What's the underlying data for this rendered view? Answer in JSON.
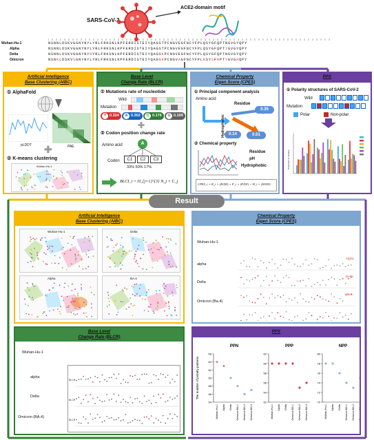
{
  "header": {
    "virus_label": "SARS-CoV-2",
    "motif_label": "ACE2-domain motif",
    "alignment_rows": [
      {
        "name": "Wuhan-Hu-1",
        "seq": "NSNNLDSKVGGNYNYLYRLFRKSNLKPFERDISTEIYQAGSTPCNGVEGFNCYFPLQSYGFQPTNGVGYQPY"
      },
      {
        "name": "Alpha",
        "seq": "NSNNLDSKVGGNYNYLYRLFRKSNLKPFERDISTEIYQAGSTPCNGVEGFNCYFPLQSYGFQPTYGVGYQPY"
      },
      {
        "name": "Delta",
        "seq": "NSNNLDSKVGGNYNYRYRLFRKSNLKPFERDISTEIYQAGSKPCNGVEGFNCYFPLQSYGFQPTNGVGYQPY"
      },
      {
        "name": "Omicron",
        "seq": "NSNKLDSKVSGNYNYLYRLFRKSNLKPFERDISTEIYQAGNKPCNGVAGFNCYFPLRSYSFRPTYGVGHQPY"
      }
    ]
  },
  "panels": {
    "aibc": {
      "title_line1": "Artificial Intelligence",
      "title_line2": "Base Clustering (AIBC)",
      "step1": "① AlphaFold",
      "plddt_label": "pLDDT",
      "pae_label": "PAE",
      "step2": "② K-means clustering",
      "cluster_title": "Wuhan-Hu-1"
    },
    "blcr": {
      "title_line1": "Base Level",
      "title_line2": "Change Rate (BLCR)",
      "step1": "① Mutations rate of nucleotide",
      "wild_label": "Wild",
      "mutation_label": "Mutation",
      "badges": [
        {
          "letter": "T",
          "value": "0.324",
          "color": "#d32f2f"
        },
        {
          "letter": "A",
          "value": "0.302",
          "color": "#1565c0"
        },
        {
          "letter": "C",
          "value": "0.176",
          "color": "#2e7d32"
        },
        {
          "letter": "G",
          "value": "0.199",
          "color": "#616161"
        }
      ],
      "step2": "② Codon position change rate",
      "amino_label": "Amino acid",
      "amino_letter": "A",
      "codon_label": "Codon",
      "codons": [
        "C1",
        "C2",
        "C3"
      ],
      "codon_rates": "33% 50% 17%",
      "formula": "BLCI_i = Π_{j=1}^{3} N_j × C_j"
    },
    "cpes": {
      "title_line1": "Chemical Property",
      "title_line2": "Eigen Score (CPES)",
      "step1": "① Principal component analysis",
      "amino_label": "Amino acid",
      "residue_label": "Residue",
      "hydrophobic_label": "Hydrophobic",
      "ph_label": "pH",
      "val_residue": "0.35",
      "val_hydro": "0.14",
      "val_ph": "0.51",
      "step2": "② Chemical property",
      "legend_residue": "Residue",
      "legend_ph": "pH",
      "legend_hydro": "Hydrophobic",
      "formula": "CPES_i = R_i × (R/ΣR) + P_i × (P/ΣP) + H_i × (H/ΣH)"
    },
    "ppx": {
      "title": "PPX",
      "step1": "① Polarity structures of SARS-CoV-2",
      "wild_label": "Wild",
      "mutation_label": "Mutation",
      "legend_polar": "Polar",
      "legend_nonpolar": "Non-polar",
      "chart_ylabel": "Proportion of variants"
    }
  },
  "result": {
    "banner": "Result",
    "aibc": {
      "title_line1": "Artificial Intelligence",
      "title_line2": "Base Clustering (AIBC)",
      "maps": [
        "Wuhan-Hu-1",
        "Delta",
        "Alpha",
        "BA.4"
      ]
    },
    "cpes": {
      "title_line1": "Chemical Property",
      "title_line2": "Eigen Score (CPES)",
      "rows": [
        "Wuhan-Hu-1",
        "alpha",
        "Delta",
        "Omicron (Ba.4)"
      ],
      "tags": [
        "Alpha",
        "Delta",
        "BA.4"
      ]
    },
    "blcr": {
      "title_line1": "Base Level",
      "title_line2": "Change Rate (BLCR)",
      "rows": [
        "Wuhan-Hu-1",
        "alpha",
        "Delta",
        "Omicron (BA.4)"
      ],
      "axis_label": "BLCR"
    },
    "ppx": {
      "title": "PPX",
      "ylabel": "The number of polarity patterns",
      "variants": [
        "Wuhan-Hu-1",
        "Alpha",
        "Delta",
        "Omicron BA.1",
        "Omicron BA.2",
        "Omicron BA.4"
      ]
    }
  },
  "chart_data": [
    {
      "type": "scatter",
      "title": "PPN",
      "ylabel": "The number of polarity patterns",
      "categories": [
        "Wuhan-Hu-1",
        "Alpha",
        "Delta",
        "Omicron BA.1",
        "Omicron BA.2",
        "Omicron BA.4"
      ],
      "ylim": [
        54,
        66
      ],
      "yticks": [
        54,
        56,
        58,
        60,
        62,
        64,
        66
      ],
      "values": [
        64,
        63,
        60,
        58,
        56,
        57
      ],
      "colors": [
        "#f08080",
        "#f08080",
        "#8fb4e0",
        "#8fb4e0",
        "#8fb4e0",
        "#8fb4e0"
      ]
    },
    {
      "type": "scatter",
      "title": "PPP",
      "categories": [
        "Wuhan-Hu-1",
        "Alpha",
        "Delta",
        "Omicron BA.1",
        "Omicron BA.2",
        "Omicron BA.4"
      ],
      "ylim": [
        52,
        62
      ],
      "yticks": [
        52,
        54,
        56,
        58,
        60,
        62
      ],
      "values": [
        60,
        60,
        60,
        60,
        55,
        56
      ],
      "colors": [
        "#e53935",
        "#e53935",
        "#e53935",
        "#e53935",
        "#e53935",
        "#e53935"
      ]
    },
    {
      "type": "scatter",
      "title": "NPP",
      "categories": [
        "Wuhan-Hu-1",
        "Alpha",
        "Delta",
        "Omicron BA.1",
        "Omicron BA.2",
        "Omicron BA.4"
      ],
      "ylim": [
        70,
        80
      ],
      "yticks": [
        70,
        72,
        74,
        76,
        78,
        80
      ],
      "values": [
        78,
        78,
        76,
        74,
        73,
        75
      ],
      "colors": [
        "#8fb4e0",
        "#8fb4e0",
        "#8fb4e0",
        "#8fb4e0",
        "#8fb4e0",
        "#8fb4e0"
      ]
    }
  ]
}
